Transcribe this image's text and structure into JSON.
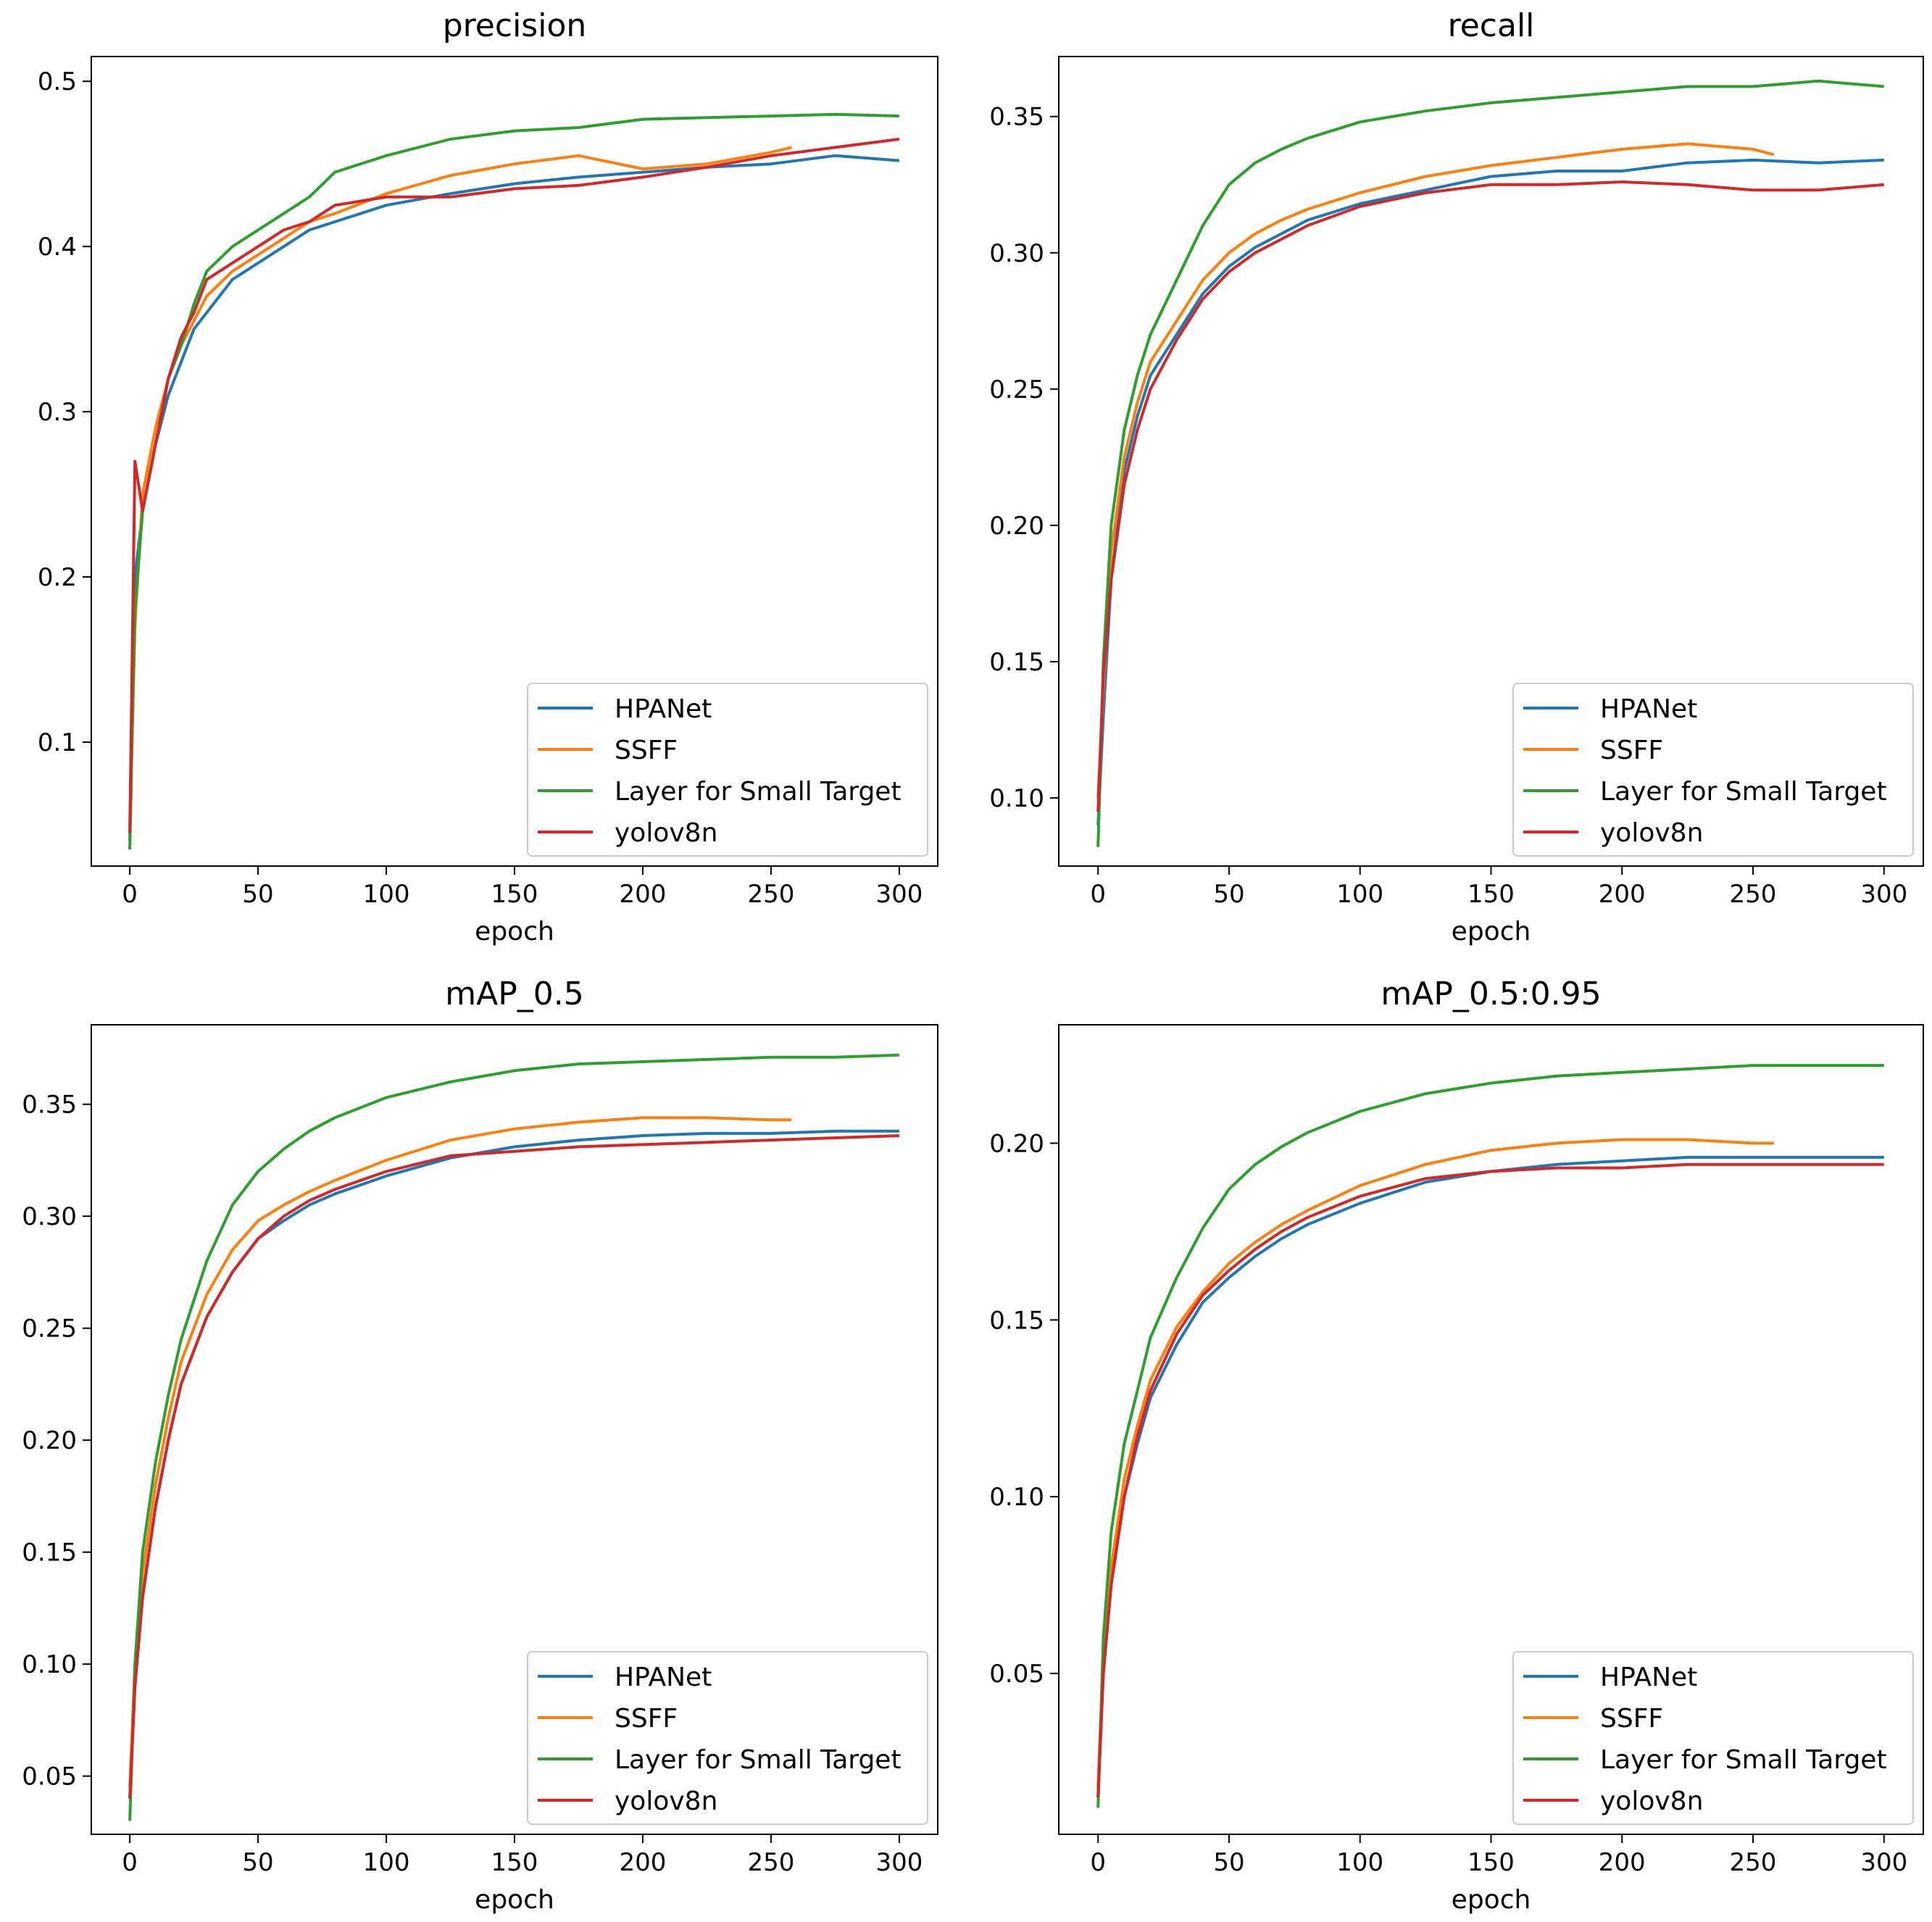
{
  "chart_data": [
    {
      "type": "line",
      "title": "precision",
      "xlabel": "epoch",
      "ylabel": "",
      "xlim": [
        -15,
        315
      ],
      "ylim": [
        0.025,
        0.515
      ],
      "xticks": [
        0,
        50,
        100,
        150,
        200,
        250,
        300
      ],
      "xtick_labels": [
        "0",
        "50",
        "100",
        "150",
        "200",
        "250",
        "300"
      ],
      "yticks": [
        0.1,
        0.2,
        0.3,
        0.4,
        0.5
      ],
      "ytick_labels": [
        "0.1",
        "0.2",
        "0.3",
        "0.4",
        "0.5"
      ],
      "grid": false,
      "legend_position": "lower-right",
      "series": [
        {
          "name": "HPANet",
          "color": "#1f77b4",
          "x": [
            0,
            2,
            5,
            10,
            15,
            20,
            25,
            30,
            40,
            50,
            60,
            70,
            80,
            100,
            125,
            150,
            175,
            200,
            225,
            250,
            275,
            300
          ],
          "y": [
            0.04,
            0.2,
            0.24,
            0.28,
            0.31,
            0.33,
            0.35,
            0.36,
            0.38,
            0.39,
            0.4,
            0.41,
            0.415,
            0.425,
            0.432,
            0.438,
            0.442,
            0.445,
            0.448,
            0.45,
            0.455,
            0.452
          ]
        },
        {
          "name": "SSFF",
          "color": "#ff7f0e",
          "x": [
            0,
            2,
            5,
            10,
            15,
            20,
            25,
            30,
            40,
            50,
            60,
            70,
            80,
            100,
            125,
            150,
            175,
            200,
            225,
            250,
            258
          ],
          "y": [
            0.05,
            0.17,
            0.25,
            0.29,
            0.32,
            0.34,
            0.355,
            0.37,
            0.385,
            0.395,
            0.405,
            0.415,
            0.42,
            0.432,
            0.443,
            0.45,
            0.455,
            0.447,
            0.45,
            0.457,
            0.46
          ]
        },
        {
          "name": "Layer for Small Target",
          "color": "#2ca02c",
          "x": [
            0,
            2,
            5,
            10,
            15,
            20,
            25,
            30,
            40,
            50,
            60,
            70,
            80,
            100,
            125,
            150,
            175,
            200,
            225,
            250,
            275,
            300
          ],
          "y": [
            0.035,
            0.18,
            0.24,
            0.28,
            0.32,
            0.34,
            0.365,
            0.385,
            0.4,
            0.41,
            0.42,
            0.43,
            0.445,
            0.455,
            0.465,
            0.47,
            0.472,
            0.477,
            0.478,
            0.479,
            0.48,
            0.479
          ]
        },
        {
          "name": "yolov8n",
          "color": "#d62728",
          "x": [
            0,
            2,
            5,
            10,
            15,
            20,
            25,
            30,
            40,
            50,
            60,
            70,
            80,
            100,
            125,
            150,
            175,
            200,
            225,
            250,
            275,
            300
          ],
          "y": [
            0.045,
            0.27,
            0.24,
            0.28,
            0.32,
            0.345,
            0.36,
            0.38,
            0.39,
            0.4,
            0.41,
            0.415,
            0.425,
            0.43,
            0.43,
            0.435,
            0.437,
            0.442,
            0.448,
            0.455,
            0.46,
            0.465
          ]
        }
      ]
    },
    {
      "type": "line",
      "title": "recall",
      "xlabel": "epoch",
      "ylabel": "",
      "xlim": [
        -15,
        315
      ],
      "ylim": [
        0.075,
        0.372
      ],
      "xticks": [
        0,
        50,
        100,
        150,
        200,
        250,
        300
      ],
      "xtick_labels": [
        "0",
        "50",
        "100",
        "150",
        "200",
        "250",
        "300"
      ],
      "yticks": [
        0.1,
        0.15,
        0.2,
        0.25,
        0.3,
        0.35
      ],
      "ytick_labels": [
        "0.10",
        "0.15",
        "0.20",
        "0.25",
        "0.30",
        "0.35"
      ],
      "grid": false,
      "legend_position": "lower-right",
      "series": [
        {
          "name": "HPANet",
          "color": "#1f77b4",
          "x": [
            0,
            2,
            5,
            10,
            15,
            20,
            30,
            40,
            50,
            60,
            70,
            80,
            100,
            125,
            150,
            175,
            200,
            225,
            250,
            275,
            300
          ],
          "y": [
            0.09,
            0.13,
            0.18,
            0.22,
            0.24,
            0.255,
            0.27,
            0.285,
            0.295,
            0.302,
            0.307,
            0.312,
            0.318,
            0.323,
            0.328,
            0.33,
            0.33,
            0.333,
            0.334,
            0.333,
            0.334
          ]
        },
        {
          "name": "SSFF",
          "color": "#ff7f0e",
          "x": [
            0,
            2,
            5,
            10,
            15,
            20,
            30,
            40,
            50,
            60,
            70,
            80,
            100,
            125,
            150,
            175,
            200,
            225,
            250,
            258
          ],
          "y": [
            0.1,
            0.14,
            0.19,
            0.225,
            0.245,
            0.26,
            0.275,
            0.29,
            0.3,
            0.307,
            0.312,
            0.316,
            0.322,
            0.328,
            0.332,
            0.335,
            0.338,
            0.34,
            0.338,
            0.336
          ]
        },
        {
          "name": "Layer for Small Target",
          "color": "#2ca02c",
          "x": [
            0,
            2,
            5,
            10,
            15,
            20,
            30,
            40,
            50,
            60,
            70,
            80,
            100,
            125,
            150,
            175,
            200,
            225,
            250,
            275,
            300
          ],
          "y": [
            0.082,
            0.15,
            0.2,
            0.235,
            0.255,
            0.27,
            0.29,
            0.31,
            0.325,
            0.333,
            0.338,
            0.342,
            0.348,
            0.352,
            0.355,
            0.357,
            0.359,
            0.361,
            0.361,
            0.363,
            0.361
          ]
        },
        {
          "name": "yolov8n",
          "color": "#d62728",
          "x": [
            0,
            2,
            5,
            10,
            15,
            20,
            30,
            40,
            50,
            60,
            70,
            80,
            100,
            125,
            150,
            175,
            200,
            225,
            250,
            275,
            300
          ],
          "y": [
            0.095,
            0.145,
            0.18,
            0.215,
            0.235,
            0.25,
            0.268,
            0.283,
            0.293,
            0.3,
            0.305,
            0.31,
            0.317,
            0.322,
            0.325,
            0.325,
            0.326,
            0.325,
            0.323,
            0.323,
            0.325
          ]
        }
      ]
    },
    {
      "type": "line",
      "title": "mAP_0.5",
      "xlabel": "epoch",
      "ylabel": "",
      "xlim": [
        -15,
        315
      ],
      "ylim": [
        0.024,
        0.3855
      ],
      "xticks": [
        0,
        50,
        100,
        150,
        200,
        250,
        300
      ],
      "xtick_labels": [
        "0",
        "50",
        "100",
        "150",
        "200",
        "250",
        "300"
      ],
      "yticks": [
        0.05,
        0.1,
        0.15,
        0.2,
        0.25,
        0.3,
        0.35
      ],
      "ytick_labels": [
        "0.05",
        "0.10",
        "0.15",
        "0.20",
        "0.25",
        "0.30",
        "0.35"
      ],
      "grid": false,
      "legend_position": "lower-right",
      "series": [
        {
          "name": "HPANet",
          "color": "#1f77b4",
          "x": [
            0,
            2,
            5,
            10,
            15,
            20,
            30,
            40,
            50,
            60,
            70,
            80,
            100,
            125,
            150,
            175,
            200,
            225,
            250,
            275,
            300
          ],
          "y": [
            0.04,
            0.09,
            0.13,
            0.17,
            0.2,
            0.225,
            0.255,
            0.275,
            0.29,
            0.298,
            0.305,
            0.31,
            0.318,
            0.326,
            0.331,
            0.334,
            0.336,
            0.337,
            0.337,
            0.338,
            0.338
          ]
        },
        {
          "name": "SSFF",
          "color": "#ff7f0e",
          "x": [
            0,
            2,
            5,
            10,
            15,
            20,
            30,
            40,
            50,
            60,
            70,
            80,
            100,
            125,
            150,
            175,
            200,
            225,
            250,
            258
          ],
          "y": [
            0.045,
            0.1,
            0.14,
            0.18,
            0.21,
            0.235,
            0.265,
            0.285,
            0.298,
            0.305,
            0.311,
            0.316,
            0.325,
            0.334,
            0.339,
            0.342,
            0.344,
            0.344,
            0.343,
            0.343
          ]
        },
        {
          "name": "Layer for Small Target",
          "color": "#2ca02c",
          "x": [
            0,
            2,
            5,
            10,
            15,
            20,
            30,
            40,
            50,
            60,
            70,
            80,
            100,
            125,
            150,
            175,
            200,
            225,
            250,
            275,
            300
          ],
          "y": [
            0.03,
            0.1,
            0.15,
            0.19,
            0.22,
            0.245,
            0.28,
            0.305,
            0.32,
            0.33,
            0.338,
            0.344,
            0.353,
            0.36,
            0.365,
            0.368,
            0.369,
            0.37,
            0.371,
            0.371,
            0.372
          ]
        },
        {
          "name": "yolov8n",
          "color": "#d62728",
          "x": [
            0,
            2,
            5,
            10,
            15,
            20,
            30,
            40,
            50,
            60,
            70,
            80,
            100,
            125,
            150,
            175,
            200,
            225,
            250,
            275,
            300
          ],
          "y": [
            0.04,
            0.09,
            0.13,
            0.17,
            0.2,
            0.225,
            0.255,
            0.275,
            0.29,
            0.3,
            0.307,
            0.312,
            0.32,
            0.327,
            0.329,
            0.331,
            0.332,
            0.333,
            0.334,
            0.335,
            0.336
          ]
        }
      ]
    },
    {
      "type": "line",
      "title": "mAP_0.5:0.95",
      "xlabel": "epoch",
      "ylabel": "",
      "xlim": [
        -15,
        315
      ],
      "ylim": [
        0.0045,
        0.2335
      ],
      "xticks": [
        0,
        50,
        100,
        150,
        200,
        250,
        300
      ],
      "xtick_labels": [
        "0",
        "50",
        "100",
        "150",
        "200",
        "250",
        "300"
      ],
      "yticks": [
        0.05,
        0.1,
        0.15,
        0.2
      ],
      "ytick_labels": [
        "0.05",
        "0.10",
        "0.15",
        "0.20"
      ],
      "grid": false,
      "legend_position": "lower-right",
      "series": [
        {
          "name": "HPANet",
          "color": "#1f77b4",
          "x": [
            0,
            2,
            5,
            10,
            15,
            20,
            30,
            40,
            50,
            60,
            70,
            80,
            100,
            125,
            150,
            175,
            200,
            225,
            250,
            275,
            300
          ],
          "y": [
            0.015,
            0.05,
            0.075,
            0.1,
            0.115,
            0.128,
            0.143,
            0.155,
            0.162,
            0.168,
            0.173,
            0.177,
            0.183,
            0.189,
            0.192,
            0.194,
            0.195,
            0.196,
            0.196,
            0.196,
            0.196
          ]
        },
        {
          "name": "SSFF",
          "color": "#ff7f0e",
          "x": [
            0,
            2,
            5,
            10,
            15,
            20,
            30,
            40,
            50,
            60,
            70,
            80,
            100,
            125,
            150,
            175,
            200,
            225,
            250,
            258
          ],
          "y": [
            0.018,
            0.055,
            0.08,
            0.105,
            0.12,
            0.133,
            0.148,
            0.158,
            0.166,
            0.172,
            0.177,
            0.181,
            0.188,
            0.194,
            0.198,
            0.2,
            0.201,
            0.201,
            0.2,
            0.2
          ]
        },
        {
          "name": "Layer for Small Target",
          "color": "#2ca02c",
          "x": [
            0,
            2,
            5,
            10,
            15,
            20,
            30,
            40,
            50,
            60,
            70,
            80,
            100,
            125,
            150,
            175,
            200,
            225,
            250,
            275,
            300
          ],
          "y": [
            0.012,
            0.06,
            0.09,
            0.115,
            0.13,
            0.145,
            0.162,
            0.176,
            0.187,
            0.194,
            0.199,
            0.203,
            0.209,
            0.214,
            0.217,
            0.219,
            0.22,
            0.221,
            0.222,
            0.222,
            0.222
          ]
        },
        {
          "name": "yolov8n",
          "color": "#d62728",
          "x": [
            0,
            2,
            5,
            10,
            15,
            20,
            30,
            40,
            50,
            60,
            70,
            80,
            100,
            125,
            150,
            175,
            200,
            225,
            250,
            275,
            300
          ],
          "y": [
            0.015,
            0.05,
            0.075,
            0.1,
            0.117,
            0.13,
            0.146,
            0.157,
            0.164,
            0.17,
            0.175,
            0.179,
            0.185,
            0.19,
            0.192,
            0.193,
            0.193,
            0.194,
            0.194,
            0.194,
            0.194
          ]
        }
      ]
    }
  ]
}
